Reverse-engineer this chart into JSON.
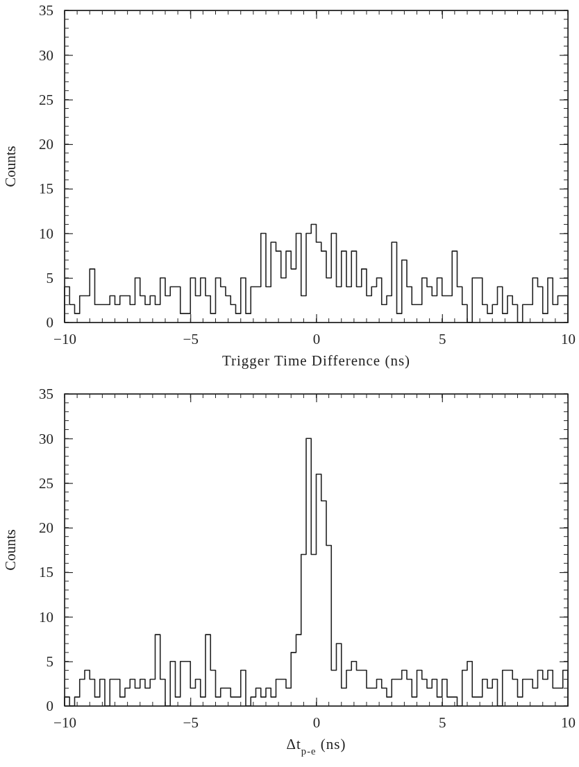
{
  "chart_data": [
    {
      "type": "histogram",
      "xlabel": "Trigger Time Difference (ns)",
      "ylabel": "Counts",
      "xlim": [
        -10,
        10
      ],
      "ylim": [
        0,
        35
      ],
      "xticks": [
        -10,
        -5,
        0,
        5,
        10
      ],
      "yticks": [
        0,
        5,
        10,
        15,
        20,
        25,
        30,
        35
      ],
      "color": "#222222",
      "bins": [
        -10,
        -9.8,
        -9.6,
        -9.4,
        -9.2,
        -9,
        -8.8,
        -8.6,
        -8.4,
        -8.2,
        -8,
        -7.8,
        -7.6,
        -7.4,
        -7.2,
        -7,
        -6.8,
        -6.6,
        -6.4,
        -6.2,
        -6,
        -5.8,
        -5.6,
        -5.4,
        -5.2,
        -5,
        -4.8,
        -4.6,
        -4.4,
        -4.2,
        -4,
        -3.8,
        -3.6,
        -3.4,
        -3.2,
        -3,
        -2.8,
        -2.6,
        -2.4,
        -2.2,
        -2,
        -1.8,
        -1.6,
        -1.4,
        -1.2,
        -1,
        -0.8,
        -0.6,
        -0.4,
        -0.2,
        0,
        0.2,
        0.4,
        0.6,
        0.8,
        1,
        1.2,
        1.4,
        1.6,
        1.8,
        2,
        2.2,
        2.4,
        2.6,
        2.8,
        3,
        3.2,
        3.4,
        3.6,
        3.8,
        4,
        4.2,
        4.4,
        4.6,
        4.8,
        5,
        5.2,
        5.4,
        5.6,
        5.8,
        6,
        6.2,
        6.4,
        6.6,
        6.8,
        7,
        7.2,
        7.4,
        7.6,
        7.8,
        8,
        8.2,
        8.4,
        8.6,
        8.8,
        9,
        9.2,
        9.4,
        9.6,
        9.8,
        10
      ],
      "values": [
        4,
        2,
        1,
        3,
        3,
        6,
        2,
        2,
        2,
        3,
        2,
        3,
        3,
        2,
        5,
        3,
        2,
        3,
        2,
        5,
        3,
        4,
        4,
        1,
        1,
        5,
        3,
        5,
        3,
        1,
        5,
        4,
        3,
        2,
        1,
        5,
        1,
        4,
        4,
        10,
        4,
        9,
        8,
        5,
        8,
        6,
        10,
        3,
        10,
        11,
        9,
        8,
        5,
        10,
        4,
        8,
        4,
        8,
        4,
        6,
        3,
        4,
        5,
        2,
        3,
        9,
        1,
        7,
        4,
        2,
        2,
        5,
        4,
        3,
        5,
        3,
        3,
        8,
        4,
        2,
        0,
        5,
        5,
        2,
        1,
        2,
        4,
        1,
        3,
        2,
        0,
        2,
        2,
        5,
        4,
        1,
        5,
        2,
        3,
        3
      ]
    },
    {
      "type": "histogram",
      "xlabel": "Δt$_{p-e}$ (ns)",
      "ylabel": "Counts",
      "xlim": [
        -10,
        10
      ],
      "ylim": [
        0,
        35
      ],
      "xticks": [
        -10,
        -5,
        0,
        5,
        10
      ],
      "yticks": [
        0,
        5,
        10,
        15,
        20,
        25,
        30,
        35
      ],
      "color": "#222222",
      "bins": [
        -10,
        -9.8,
        -9.6,
        -9.4,
        -9.2,
        -9,
        -8.8,
        -8.6,
        -8.4,
        -8.2,
        -8,
        -7.8,
        -7.6,
        -7.4,
        -7.2,
        -7,
        -6.8,
        -6.6,
        -6.4,
        -6.2,
        -6,
        -5.8,
        -5.6,
        -5.4,
        -5.2,
        -5,
        -4.8,
        -4.6,
        -4.4,
        -4.2,
        -4,
        -3.8,
        -3.6,
        -3.4,
        -3.2,
        -3,
        -2.8,
        -2.6,
        -2.4,
        -2.2,
        -2,
        -1.8,
        -1.6,
        -1.4,
        -1.2,
        -1,
        -0.8,
        -0.6,
        -0.4,
        -0.2,
        0,
        0.2,
        0.4,
        0.6,
        0.8,
        1,
        1.2,
        1.4,
        1.6,
        1.8,
        2,
        2.2,
        2.4,
        2.6,
        2.8,
        3,
        3.2,
        3.4,
        3.6,
        3.8,
        4,
        4.2,
        4.4,
        4.6,
        4.8,
        5,
        5.2,
        5.4,
        5.6,
        5.8,
        6,
        6.2,
        6.4,
        6.6,
        6.8,
        7,
        7.2,
        7.4,
        7.6,
        7.8,
        8,
        8.2,
        8.4,
        8.6,
        8.8,
        9,
        9.2,
        9.4,
        9.6,
        9.8,
        10
      ],
      "values": [
        1,
        0,
        1,
        3,
        4,
        3,
        1,
        3,
        0,
        3,
        3,
        1,
        2,
        3,
        2,
        3,
        2,
        3,
        8,
        3,
        0,
        5,
        1,
        5,
        5,
        2,
        3,
        1,
        8,
        4,
        1,
        2,
        2,
        1,
        1,
        4,
        0,
        1,
        2,
        1,
        2,
        1,
        3,
        3,
        2,
        6,
        8,
        17,
        30,
        17,
        26,
        23,
        18,
        4,
        7,
        2,
        4,
        5,
        4,
        4,
        2,
        2,
        3,
        2,
        1,
        3,
        3,
        4,
        3,
        1,
        4,
        3,
        2,
        3,
        1,
        3,
        1,
        1,
        0,
        4,
        5,
        1,
        1,
        3,
        2,
        3,
        0,
        4,
        4,
        3,
        1,
        3,
        3,
        2,
        4,
        3,
        4,
        2,
        2,
        4
      ]
    }
  ]
}
